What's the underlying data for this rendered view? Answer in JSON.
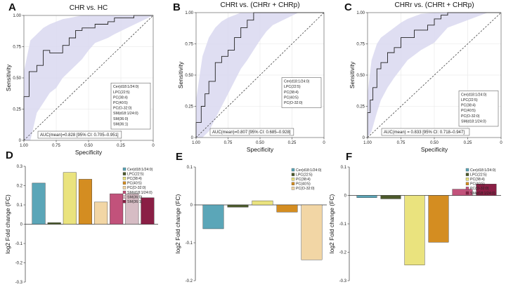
{
  "colors": {
    "band": "#d9d8f0",
    "roc_line": "#222222",
    "diagonal": "#444444",
    "grid": "#e6e6e6",
    "bar_stroke": "#333333"
  },
  "chart_data": [
    {
      "id": "A",
      "panel_label": "A",
      "type": "line",
      "title": "CHR vs. HC",
      "xlabel": "Specificity",
      "ylabel": "Sensitivity",
      "xlim": [
        1.0,
        0.0
      ],
      "ylim": [
        0.0,
        1.0
      ],
      "x_ticks": [
        "1.00",
        "0.75",
        "0.50",
        "0.25",
        "0"
      ],
      "y_ticks": [
        "0",
        "0.25",
        "0.50",
        "0.75",
        "1.00"
      ],
      "x_tick_values": [
        1.0,
        0.75,
        0.5,
        0.25,
        0.0
      ],
      "y_tick_values": [
        0,
        0.25,
        0.5,
        0.75,
        1.0
      ],
      "grid": true,
      "legend_position": "bottom-right",
      "legend": [
        "Cer(d18:1/24:0)",
        "LPC(22:5)",
        "PC(38:4)",
        "PC(40:5)",
        "PC(O-32:0)",
        "SM(d18:1/24:0)",
        "SM(36:0)",
        "SM(36:1)"
      ],
      "annotation": "AUC(mean)=0.828 [95% CI: 0.705–0.951]",
      "roc": {
        "specificity": [
          1.0,
          1.0,
          0.96,
          0.96,
          0.9,
          0.9,
          0.85,
          0.85,
          0.8,
          0.8,
          0.7,
          0.7,
          0.65,
          0.65,
          0.6,
          0.6,
          0.55,
          0.55,
          0.45,
          0.45,
          0.35,
          0.35,
          0.3,
          0.3,
          0.15,
          0.15,
          0.0
        ],
        "sensitivity": [
          0.0,
          0.35,
          0.35,
          0.55,
          0.55,
          0.6,
          0.6,
          0.72,
          0.72,
          0.7,
          0.7,
          0.76,
          0.76,
          0.82,
          0.82,
          0.88,
          0.88,
          0.9,
          0.9,
          0.93,
          0.93,
          0.95,
          0.95,
          0.98,
          0.98,
          1.0,
          1.0
        ]
      },
      "ci_band": {
        "specificity": [
          1.0,
          0.95,
          0.9,
          0.85,
          0.8,
          0.75,
          0.7,
          0.65,
          0.6,
          0.55,
          0.5,
          0.45,
          0.4,
          0.35,
          0.3,
          0.2,
          0.1,
          0.0
        ],
        "upper": [
          0.55,
          0.8,
          0.85,
          0.9,
          0.93,
          0.95,
          0.97,
          0.98,
          0.99,
          1.0,
          1.0,
          1.0,
          1.0,
          1.0,
          1.0,
          1.0,
          1.0,
          1.0
        ],
        "lower": [
          0.0,
          0.0,
          0.22,
          0.3,
          0.38,
          0.42,
          0.5,
          0.55,
          0.6,
          0.65,
          0.72,
          0.78,
          0.8,
          0.82,
          0.85,
          0.9,
          0.95,
          1.0
        ]
      }
    },
    {
      "id": "B",
      "panel_label": "B",
      "type": "line",
      "title": "CHRt vs. (CHRr + CHRp)",
      "xlabel": "Specificity",
      "ylabel": "Sensitivity",
      "xlim": [
        1.0,
        0.0
      ],
      "ylim": [
        0.0,
        1.0
      ],
      "x_ticks": [
        "1.00",
        "0.75",
        "0.50",
        "0.25",
        "0"
      ],
      "y_ticks": [
        "0",
        "0.25",
        "0.50",
        "0.75",
        "1.00"
      ],
      "x_tick_values": [
        1.0,
        0.75,
        0.5,
        0.25,
        0.0
      ],
      "y_tick_values": [
        0,
        0.25,
        0.5,
        0.75,
        1.0
      ],
      "grid": true,
      "legend_position": "right",
      "legend": [
        "Cer(d18:1/24:0)",
        "LPC(22:5)",
        "PC(38:4)",
        "PC(40:5)",
        "PC(O-32:0)"
      ],
      "annotation": "AUC(mean)=0.807 [95% CI: 0.685–0.928]",
      "roc": {
        "specificity": [
          1.0,
          1.0,
          0.96,
          0.96,
          0.93,
          0.93,
          0.9,
          0.9,
          0.85,
          0.85,
          0.8,
          0.8,
          0.75,
          0.75,
          0.7,
          0.7,
          0.65,
          0.65,
          0.6,
          0.6,
          0.55,
          0.55,
          0.45,
          0.45,
          0.0
        ],
        "sensitivity": [
          0.0,
          0.12,
          0.12,
          0.25,
          0.25,
          0.35,
          0.35,
          0.45,
          0.45,
          0.6,
          0.6,
          0.65,
          0.65,
          0.7,
          0.7,
          0.8,
          0.8,
          0.88,
          0.88,
          0.94,
          0.94,
          1.0,
          1.0,
          1.0,
          1.0
        ]
      },
      "ci_band": {
        "specificity": [
          1.0,
          0.95,
          0.9,
          0.85,
          0.8,
          0.75,
          0.7,
          0.65,
          0.6,
          0.55,
          0.5,
          0.45,
          0.4,
          0.3,
          0.2,
          0.1,
          0.0
        ],
        "upper": [
          0.3,
          0.65,
          0.8,
          0.88,
          0.93,
          0.96,
          0.98,
          1.0,
          1.0,
          1.0,
          1.0,
          1.0,
          1.0,
          1.0,
          1.0,
          1.0,
          1.0
        ],
        "lower": [
          0.0,
          0.0,
          0.05,
          0.15,
          0.25,
          0.35,
          0.45,
          0.55,
          0.62,
          0.7,
          0.78,
          0.85,
          0.9,
          0.95,
          1.0,
          1.0,
          1.0
        ]
      }
    },
    {
      "id": "C",
      "panel_label": "C",
      "type": "line",
      "title": "CHRr vs. (CHRt + CHRp)",
      "xlabel": "Specificity",
      "ylabel": "Sensitivity",
      "xlim": [
        1.0,
        0.0
      ],
      "ylim": [
        0.0,
        1.0
      ],
      "x_ticks": [
        "1.00",
        "0.75",
        "0.50",
        "0.25",
        "0"
      ],
      "y_ticks": [
        "0",
        "0.25",
        "0.50",
        "0.75",
        "1.00"
      ],
      "x_tick_values": [
        1.0,
        0.75,
        0.5,
        0.25,
        0.0
      ],
      "y_tick_values": [
        0,
        0.25,
        0.5,
        0.75,
        1.0
      ],
      "grid": true,
      "legend_position": "bottom-right",
      "legend": [
        "Cer(d18:1/24:0)",
        "LPC(22:5)",
        "PC(38:4)",
        "PC(40:5)",
        "PC(O-32:0)",
        "SM(d18:1/24:0)"
      ],
      "annotation": "AUC(mean) = 0.833 [95% CI: 0.718–0.947]",
      "roc": {
        "specificity": [
          1.0,
          1.0,
          0.98,
          0.98,
          0.96,
          0.96,
          0.93,
          0.93,
          0.9,
          0.9,
          0.85,
          0.85,
          0.8,
          0.8,
          0.75,
          0.75,
          0.65,
          0.65,
          0.55,
          0.55,
          0.5,
          0.5,
          0.45,
          0.45,
          0.4,
          0.4,
          0.0
        ],
        "sensitivity": [
          0.0,
          0.2,
          0.2,
          0.3,
          0.3,
          0.4,
          0.4,
          0.55,
          0.55,
          0.6,
          0.6,
          0.68,
          0.68,
          0.72,
          0.72,
          0.8,
          0.8,
          0.86,
          0.86,
          0.9,
          0.9,
          0.95,
          0.95,
          0.98,
          0.98,
          1.0,
          1.0
        ]
      },
      "ci_band": {
        "specificity": [
          1.0,
          0.97,
          0.93,
          0.9,
          0.85,
          0.8,
          0.75,
          0.7,
          0.6,
          0.5,
          0.45,
          0.4,
          0.3,
          0.2,
          0.1,
          0.0
        ],
        "upper": [
          0.35,
          0.62,
          0.75,
          0.8,
          0.84,
          0.88,
          0.92,
          0.95,
          0.99,
          1.0,
          1.0,
          1.0,
          1.0,
          1.0,
          1.0,
          1.0
        ],
        "lower": [
          0.0,
          0.05,
          0.2,
          0.3,
          0.4,
          0.48,
          0.55,
          0.62,
          0.7,
          0.76,
          0.82,
          0.88,
          0.92,
          0.96,
          1.0,
          1.0
        ]
      }
    },
    {
      "id": "D",
      "panel_label": "D",
      "type": "bar",
      "xlabel": "",
      "ylabel": "log2 Fold change (FC)",
      "ylim": [
        -0.3,
        0.3
      ],
      "y_ticks": [
        "0.3",
        "0.2",
        "0.1",
        "0",
        "-0.1",
        "-0.2",
        "-0.3"
      ],
      "y_tick_values": [
        0.3,
        0.2,
        0.1,
        0,
        -0.1,
        -0.2,
        -0.3
      ],
      "grid": false,
      "legend_position": "top-right",
      "categories": [
        "Cer(d18:1/24:0)",
        "LPC(22:5)",
        "PC(38:4)",
        "PC(40:5)",
        "PC(O-32:0)",
        "SM(d18:1/24:0)",
        "SM(36:0)",
        "SM(36:1)"
      ],
      "values": [
        0.213,
        0.008,
        0.268,
        0.233,
        0.115,
        0.158,
        0.157,
        0.137
      ],
      "bar_colors": [
        "#5ba6b8",
        "#4c5a2c",
        "#eae37e",
        "#d48d21",
        "#f2d6a5",
        "#c2527b",
        "#d6bcc4",
        "#8a1f45"
      ]
    },
    {
      "id": "E",
      "panel_label": "E",
      "type": "bar",
      "xlabel": "",
      "ylabel": "log2 Fold change (FC)",
      "ylim": [
        -0.2,
        0.1
      ],
      "y_ticks": [
        "0.1",
        "0",
        "-0.1",
        "-0.2"
      ],
      "y_tick_values": [
        0.1,
        0,
        -0.1,
        -0.2
      ],
      "grid": false,
      "legend_position": "top-right",
      "categories": [
        "Cer(d18:1/24:0)",
        "LPC(22:5)",
        "PC(38:4)",
        "PC(40:5)",
        "PC(O-32:0)"
      ],
      "values": [
        -0.063,
        -0.006,
        0.011,
        -0.019,
        -0.145
      ],
      "bar_colors": [
        "#5ba6b8",
        "#4c5a2c",
        "#eae37e",
        "#d48d21",
        "#f2d6a5"
      ]
    },
    {
      "id": "F",
      "panel_label": "F",
      "type": "bar",
      "xlabel": "",
      "ylabel": "log2 Fold change (FC)",
      "ylim": [
        -0.3,
        0.1
      ],
      "y_ticks": [
        "0.1",
        "0",
        "-0.1",
        "-0.2",
        "-0.3"
      ],
      "y_tick_values": [
        0.1,
        0,
        -0.1,
        -0.2,
        -0.3
      ],
      "grid": false,
      "legend_position": "top-right",
      "categories": [
        "Cer(d18:1/24:0)",
        "LPC(22:5)",
        "PC(38:4)",
        "PC(40:5)",
        "PC(O-32:0)",
        "SM(d18:1/24:0)"
      ],
      "values": [
        -0.008,
        -0.012,
        -0.245,
        -0.165,
        0.022,
        0.04
      ],
      "bar_colors": [
        "#5ba6b8",
        "#4c5a2c",
        "#eae37e",
        "#d48d21",
        "#c2527b",
        "#8a1f45"
      ]
    }
  ]
}
